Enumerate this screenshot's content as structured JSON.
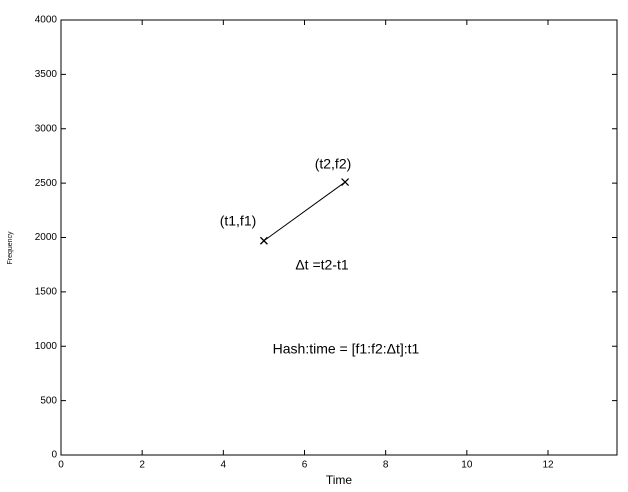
{
  "chart_data": {
    "type": "line",
    "x_label": "Time",
    "y_label": "Frequency",
    "x": [
      5,
      7
    ],
    "series": [
      {
        "color": "#000000",
        "values": [
          1970,
          2510
        ],
        "marker": "x"
      }
    ],
    "xlim": [
      0,
      13.7
    ],
    "xticks": [
      0,
      2,
      4,
      6,
      8,
      10,
      12
    ],
    "ylim": [
      0,
      4000
    ],
    "yticks": [
      0,
      500,
      1000,
      1500,
      2000,
      2500,
      3000,
      3500,
      4000
    ],
    "grid": false,
    "annotations": [
      "(t1,f1)",
      "(t2,f2)",
      "Δt =t2-t1",
      "Hash:time = [f1:f2:Δt]:t1"
    ]
  }
}
